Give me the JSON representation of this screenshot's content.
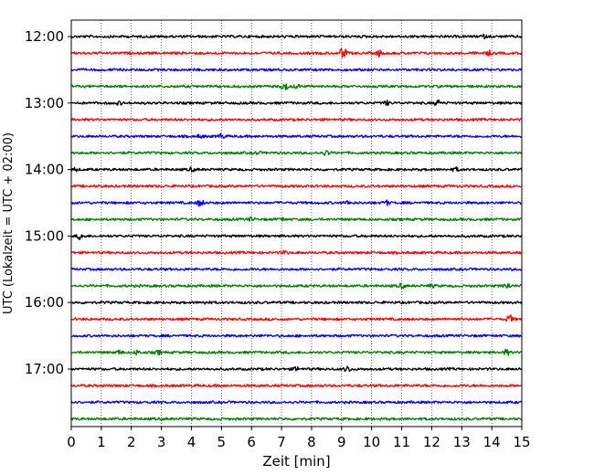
{
  "chart_data": {
    "type": "line",
    "title": "",
    "xlabel": "Zeit  [min]",
    "ylabel": "UTC (Lokalzeit = UTC + 02:00)",
    "xlim": [
      0,
      15
    ],
    "xticks": [
      0,
      1,
      2,
      3,
      4,
      5,
      6,
      7,
      8,
      9,
      10,
      11,
      12,
      13,
      14,
      15
    ],
    "xtick_labels": [
      "0",
      "1",
      "2",
      "3",
      "4",
      "5",
      "6",
      "7",
      "8",
      "9",
      "10",
      "11",
      "12",
      "13",
      "14",
      "15"
    ],
    "ytick_labels": [
      "12:00",
      "13:00",
      "14:00",
      "15:00",
      "16:00",
      "17:00"
    ],
    "ytick_rows": [
      0,
      4,
      8,
      12,
      16,
      20
    ],
    "row_interval_min": 15,
    "grid": "vertical dotted at each minute",
    "legend": "none",
    "colors_cycle": [
      "#000000",
      "#ff0000",
      "#0000ff",
      "#008000"
    ],
    "series": [
      {
        "start": "12:00",
        "color": "#000000",
        "events": [
          [
            13.7,
            1.5
          ]
        ]
      },
      {
        "start": "12:15",
        "color": "#ff0000",
        "events": [
          [
            9.05,
            6.0
          ],
          [
            10.25,
            3.0
          ],
          [
            13.9,
            2.0
          ]
        ]
      },
      {
        "start": "12:30",
        "color": "#0000ff",
        "events": []
      },
      {
        "start": "12:45",
        "color": "#008000",
        "events": [
          [
            7.1,
            4.0
          ],
          [
            7.5,
            2.0
          ]
        ]
      },
      {
        "start": "13:00",
        "color": "#000000",
        "events": [
          [
            10.5,
            2.0
          ],
          [
            12.2,
            3.0
          ],
          [
            1.6,
            1.3
          ]
        ]
      },
      {
        "start": "13:15",
        "color": "#ff0000",
        "events": []
      },
      {
        "start": "13:30",
        "color": "#0000ff",
        "events": [
          [
            4.3,
            1.5
          ],
          [
            5.0,
            2.5
          ]
        ]
      },
      {
        "start": "13:45",
        "color": "#008000",
        "events": [
          [
            8.5,
            2.5
          ],
          [
            6.2,
            1.3
          ]
        ]
      },
      {
        "start": "14:00",
        "color": "#000000",
        "events": [
          [
            0.1,
            2.0
          ],
          [
            4.0,
            1.8
          ],
          [
            12.8,
            1.8
          ]
        ]
      },
      {
        "start": "14:15",
        "color": "#ff0000",
        "events": []
      },
      {
        "start": "14:30",
        "color": "#0000ff",
        "events": [
          [
            4.3,
            3.5
          ],
          [
            9.2,
            1.6
          ],
          [
            10.5,
            2.3
          ]
        ]
      },
      {
        "start": "14:45",
        "color": "#008000",
        "events": [
          [
            6.0,
            1.5
          ],
          [
            7.0,
            1.4
          ]
        ]
      },
      {
        "start": "15:00",
        "color": "#000000",
        "events": [
          [
            0.3,
            3.0
          ]
        ]
      },
      {
        "start": "15:15",
        "color": "#ff0000",
        "events": [
          [
            7.1,
            1.5
          ]
        ]
      },
      {
        "start": "15:30",
        "color": "#0000ff",
        "events": []
      },
      {
        "start": "15:45",
        "color": "#008000",
        "events": [
          [
            11.0,
            2.3
          ],
          [
            14.5,
            3.0
          ],
          [
            12.0,
            1.3
          ]
        ]
      },
      {
        "start": "16:00",
        "color": "#000000",
        "events": [
          [
            4.5,
            1.3
          ]
        ]
      },
      {
        "start": "16:15",
        "color": "#ff0000",
        "events": [
          [
            14.6,
            4.0
          ]
        ]
      },
      {
        "start": "16:30",
        "color": "#0000ff",
        "events": []
      },
      {
        "start": "16:45",
        "color": "#008000",
        "events": [
          [
            1.6,
            1.8
          ],
          [
            2.2,
            2.0
          ],
          [
            2.9,
            1.8
          ],
          [
            14.5,
            2.5
          ]
        ]
      },
      {
        "start": "17:00",
        "color": "#000000",
        "events": [
          [
            7.5,
            1.8
          ],
          [
            9.2,
            3.0
          ]
        ]
      },
      {
        "start": "17:15",
        "color": "#ff0000",
        "events": []
      },
      {
        "start": "17:30",
        "color": "#0000ff",
        "events": []
      },
      {
        "start": "17:45",
        "color": "#008000",
        "events": []
      }
    ]
  }
}
